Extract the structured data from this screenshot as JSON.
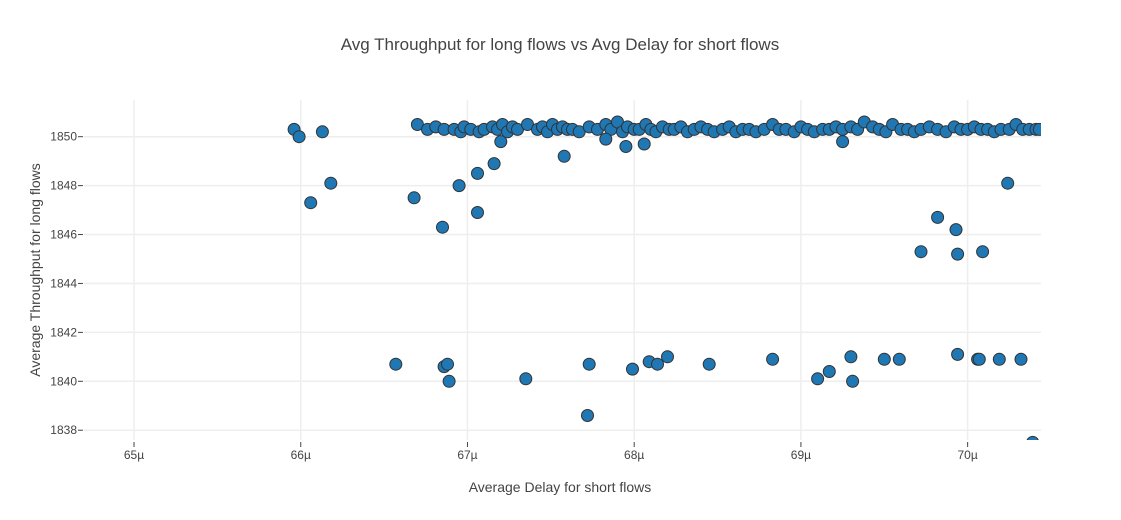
{
  "chart_data": {
    "type": "scatter",
    "title": "Avg Throughput for long flows vs Avg Delay for short flows",
    "xlabel": "Average Delay for short flows",
    "ylabel": "Average Throughput for long flows",
    "xlim": [
      64.7,
      70.44
    ],
    "ylim": [
      1837.6,
      1851.5
    ],
    "grid": true,
    "marker_color": "#1f77b4",
    "x_ticks": [
      65,
      66,
      67,
      68,
      69,
      70
    ],
    "x_tick_labels": [
      "65µ",
      "66µ",
      "67µ",
      "68µ",
      "69µ",
      "70µ"
    ],
    "y_ticks": [
      1838,
      1840,
      1842,
      1844,
      1846,
      1848,
      1850
    ],
    "y_tick_labels": [
      "1838",
      "1840",
      "1842",
      "1844",
      "1846",
      "1848",
      "1850"
    ],
    "series": [
      {
        "x": [
          65.96,
          65.99,
          66.13,
          66.7,
          66.76,
          66.81,
          66.86,
          66.92,
          66.96,
          66.98,
          67.02,
          67.07,
          67.1,
          67.15,
          67.18,
          67.21,
          67.24,
          67.27,
          67.3,
          67.36,
          67.42,
          67.45,
          67.48,
          67.51,
          67.54,
          67.57,
          67.6,
          67.63,
          67.67,
          67.73,
          67.78,
          67.83,
          67.86,
          67.9,
          67.93,
          67.96,
          68.0,
          68.03,
          68.07,
          68.1,
          68.13,
          68.17,
          68.21,
          68.24,
          68.28,
          68.32,
          68.36,
          68.4,
          68.44,
          68.48,
          68.53,
          68.57,
          68.61,
          68.65,
          68.69,
          68.73,
          68.78,
          68.83,
          68.87,
          68.91,
          68.96,
          69.0,
          69.04,
          69.08,
          69.13,
          69.17,
          69.21,
          69.25,
          69.3,
          69.34,
          69.38,
          69.43,
          69.47,
          69.51,
          69.55,
          69.6,
          69.64,
          69.68,
          69.72,
          69.77,
          69.82,
          69.87,
          69.92,
          69.96,
          70.0,
          70.04,
          70.08,
          70.12,
          70.16,
          70.2,
          70.25,
          70.29,
          70.33,
          70.37,
          70.41,
          70.43,
          66.06,
          66.18,
          66.68,
          66.85,
          66.95,
          67.06,
          67.06,
          67.16,
          67.2,
          67.58,
          67.83,
          67.95,
          68.06,
          69.25,
          69.72,
          69.82,
          69.93,
          69.94,
          70.09,
          70.24,
          66.57,
          66.86,
          66.88,
          66.89,
          67.35,
          67.73,
          67.72,
          67.99,
          68.09,
          68.14,
          68.2,
          68.45,
          68.83,
          69.1,
          69.17,
          69.31,
          69.3,
          69.5,
          69.59,
          69.94,
          70.06,
          70.07,
          70.19,
          70.32,
          70.39
        ],
        "y": [
          1850.3,
          1850.0,
          1850.2,
          1850.5,
          1850.3,
          1850.4,
          1850.3,
          1850.3,
          1850.2,
          1850.4,
          1850.3,
          1850.2,
          1850.3,
          1850.4,
          1850.3,
          1850.5,
          1850.2,
          1850.4,
          1850.3,
          1850.5,
          1850.3,
          1850.4,
          1850.2,
          1850.5,
          1850.3,
          1850.4,
          1850.3,
          1850.3,
          1850.2,
          1850.4,
          1850.3,
          1850.5,
          1850.3,
          1850.6,
          1850.2,
          1850.4,
          1850.3,
          1850.3,
          1850.5,
          1850.3,
          1850.2,
          1850.4,
          1850.3,
          1850.3,
          1850.4,
          1850.2,
          1850.3,
          1850.4,
          1850.3,
          1850.2,
          1850.3,
          1850.4,
          1850.2,
          1850.3,
          1850.3,
          1850.2,
          1850.3,
          1850.5,
          1850.3,
          1850.3,
          1850.2,
          1850.4,
          1850.3,
          1850.2,
          1850.3,
          1850.3,
          1850.4,
          1850.3,
          1850.4,
          1850.3,
          1850.6,
          1850.4,
          1850.3,
          1850.2,
          1850.5,
          1850.3,
          1850.3,
          1850.2,
          1850.3,
          1850.4,
          1850.3,
          1850.2,
          1850.4,
          1850.3,
          1850.3,
          1850.4,
          1850.3,
          1850.3,
          1850.2,
          1850.3,
          1850.3,
          1850.5,
          1850.3,
          1850.3,
          1850.3,
          1850.3,
          1847.3,
          1848.1,
          1847.5,
          1846.3,
          1848.0,
          1846.9,
          1848.5,
          1848.9,
          1849.8,
          1849.2,
          1849.9,
          1849.6,
          1849.7,
          1849.8,
          1845.3,
          1846.7,
          1846.2,
          1845.2,
          1845.3,
          1848.1,
          1840.7,
          1840.6,
          1840.7,
          1840.0,
          1840.1,
          1840.7,
          1838.6,
          1840.5,
          1840.8,
          1840.7,
          1841.0,
          1840.7,
          1840.9,
          1840.1,
          1840.4,
          1840.0,
          1841.0,
          1840.9,
          1840.9,
          1841.1,
          1840.9,
          1840.9,
          1840.9,
          1840.9,
          1837.5
        ]
      }
    ]
  }
}
